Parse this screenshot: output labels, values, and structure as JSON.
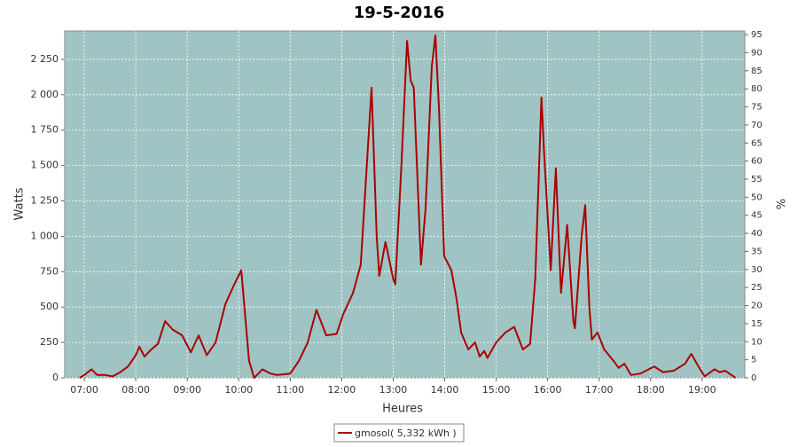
{
  "chart_data": {
    "type": "line",
    "title": "19-5-2016",
    "x_label": "Heures",
    "y_label": "Watts",
    "y2_label": "%",
    "x": [
      6.91,
      7.0,
      7.14,
      7.25,
      7.4,
      7.55,
      7.7,
      7.85,
      8.0,
      8.07,
      8.17,
      8.3,
      8.43,
      8.57,
      8.72,
      8.9,
      9.07,
      9.22,
      9.38,
      9.55,
      9.74,
      9.9,
      10.05,
      10.2,
      10.3,
      10.46,
      10.62,
      10.75,
      11.0,
      11.17,
      11.34,
      11.51,
      11.7,
      11.9,
      12.03,
      12.22,
      12.37,
      12.58,
      12.68,
      12.73,
      12.85,
      13.0,
      13.04,
      13.16,
      13.27,
      13.34,
      13.4,
      13.54,
      13.63,
      13.75,
      13.82,
      13.89,
      13.99,
      14.13,
      14.23,
      14.32,
      14.46,
      14.59,
      14.68,
      14.77,
      14.83,
      15.0,
      15.18,
      15.35,
      15.52,
      15.66,
      15.76,
      15.88,
      15.93,
      16.06,
      16.16,
      16.26,
      16.38,
      16.5,
      16.53,
      16.66,
      16.73,
      16.81,
      16.86,
      16.97,
      17.1,
      17.28,
      17.38,
      17.49,
      17.62,
      17.8,
      18.07,
      18.24,
      18.45,
      18.67,
      18.79,
      18.93,
      19.05,
      19.24,
      19.34,
      19.45,
      19.65
    ],
    "series": [
      {
        "name": "gmosol( 5,332 kWh )",
        "color": "#aa0000",
        "values": [
          0,
          20,
          60,
          20,
          20,
          10,
          40,
          80,
          160,
          220,
          150,
          200,
          240,
          400,
          340,
          300,
          180,
          300,
          160,
          250,
          520,
          650,
          760,
          120,
          0,
          60,
          30,
          20,
          30,
          120,
          250,
          480,
          300,
          310,
          450,
          600,
          800,
          2050,
          1000,
          720,
          960,
          700,
          660,
          1500,
          2380,
          2100,
          2050,
          800,
          1200,
          2200,
          2420,
          1900,
          860,
          760,
          560,
          320,
          200,
          250,
          150,
          190,
          140,
          250,
          320,
          360,
          200,
          240,
          700,
          1980,
          1600,
          760,
          1480,
          600,
          1080,
          400,
          350,
          1000,
          1220,
          500,
          270,
          320,
          200,
          120,
          70,
          100,
          20,
          30,
          80,
          40,
          50,
          100,
          170,
          80,
          10,
          60,
          40,
          50,
          0
        ]
      }
    ],
    "xlim": [
      6.62,
      19.83
    ],
    "xticks": [
      {
        "value": 7,
        "label": "07:00"
      },
      {
        "value": 8,
        "label": "08:00"
      },
      {
        "value": 9,
        "label": "09:00"
      },
      {
        "value": 10,
        "label": "10:00"
      },
      {
        "value": 11,
        "label": "11:00"
      },
      {
        "value": 12,
        "label": "12:00"
      },
      {
        "value": 13,
        "label": "13:00"
      },
      {
        "value": 14,
        "label": "14:00"
      },
      {
        "value": 15,
        "label": "15:00"
      },
      {
        "value": 16,
        "label": "16:00"
      },
      {
        "value": 17,
        "label": "17:00"
      },
      {
        "value": 18,
        "label": "18:00"
      },
      {
        "value": 19,
        "label": "19:00"
      }
    ],
    "ylim": [
      0,
      2450
    ],
    "yticks": [
      0,
      250,
      500,
      750,
      {
        "value": 1000,
        "label": "1 000"
      },
      {
        "value": 1250,
        "label": "1 250"
      },
      {
        "value": 1500,
        "label": "1 500"
      },
      {
        "value": 1750,
        "label": "1 750"
      },
      {
        "value": 2000,
        "label": "2 000"
      },
      {
        "value": 2250,
        "label": "2 250"
      }
    ],
    "y2lim": [
      0,
      96
    ],
    "y2ticks": [
      0,
      5,
      10,
      15,
      20,
      25,
      30,
      35,
      40,
      45,
      50,
      55,
      60,
      65,
      70,
      75,
      80,
      85,
      90,
      95
    ],
    "grid": true,
    "plot_background": "#a0c4c4"
  }
}
